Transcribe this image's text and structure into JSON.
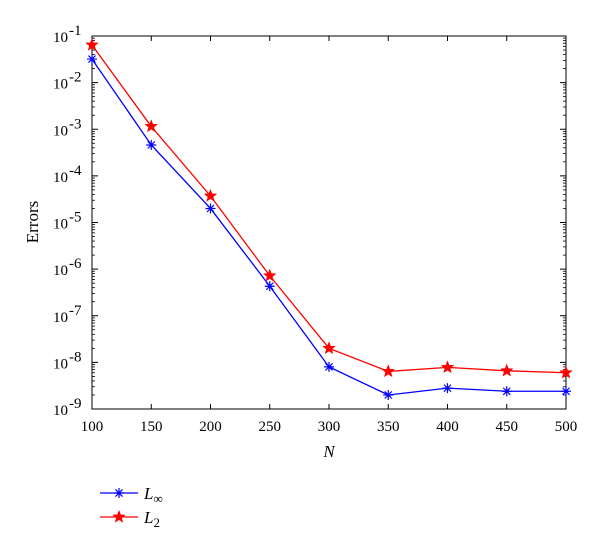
{
  "chart_data": {
    "type": "line",
    "xlabel": "N",
    "ylabel": "Errors",
    "x": [
      100,
      150,
      200,
      250,
      300,
      350,
      400,
      450,
      500
    ],
    "xlim": [
      100,
      500
    ],
    "ylim": [
      1e-09,
      0.1
    ],
    "yscale": "log",
    "x_ticks": [
      "100",
      "150",
      "200",
      "250",
      "300",
      "350",
      "400",
      "450",
      "500"
    ],
    "y_ticks": [
      {
        "base": "10",
        "exp": "-9",
        "value": 1e-09
      },
      {
        "base": "10",
        "exp": "-8",
        "value": 1e-08
      },
      {
        "base": "10",
        "exp": "-7",
        "value": 1e-07
      },
      {
        "base": "10",
        "exp": "-6",
        "value": 1e-06
      },
      {
        "base": "10",
        "exp": "-5",
        "value": 1e-05
      },
      {
        "base": "10",
        "exp": "-4",
        "value": 0.0001
      },
      {
        "base": "10",
        "exp": "-3",
        "value": 0.001
      },
      {
        "base": "10",
        "exp": "-2",
        "value": 0.01
      },
      {
        "base": "10",
        "exp": "-1",
        "value": 0.1
      }
    ],
    "grid": false,
    "legend_position": "below-left",
    "series": [
      {
        "name_base": "L",
        "name_sub": "∞",
        "color": "#0000ff",
        "marker": "asterisk",
        "values": [
          0.032,
          0.00046,
          2e-05,
          4.3e-07,
          8e-09,
          2e-09,
          2.8e-09,
          2.4e-09,
          2.4e-09
        ]
      },
      {
        "name_base": "L",
        "name_sub": "2",
        "color": "#ff0000",
        "marker": "star",
        "values": [
          0.064,
          0.00115,
          3.7e-05,
          7.2e-07,
          2e-08,
          6.4e-09,
          7.8e-09,
          6.6e-09,
          6e-09
        ]
      }
    ]
  }
}
